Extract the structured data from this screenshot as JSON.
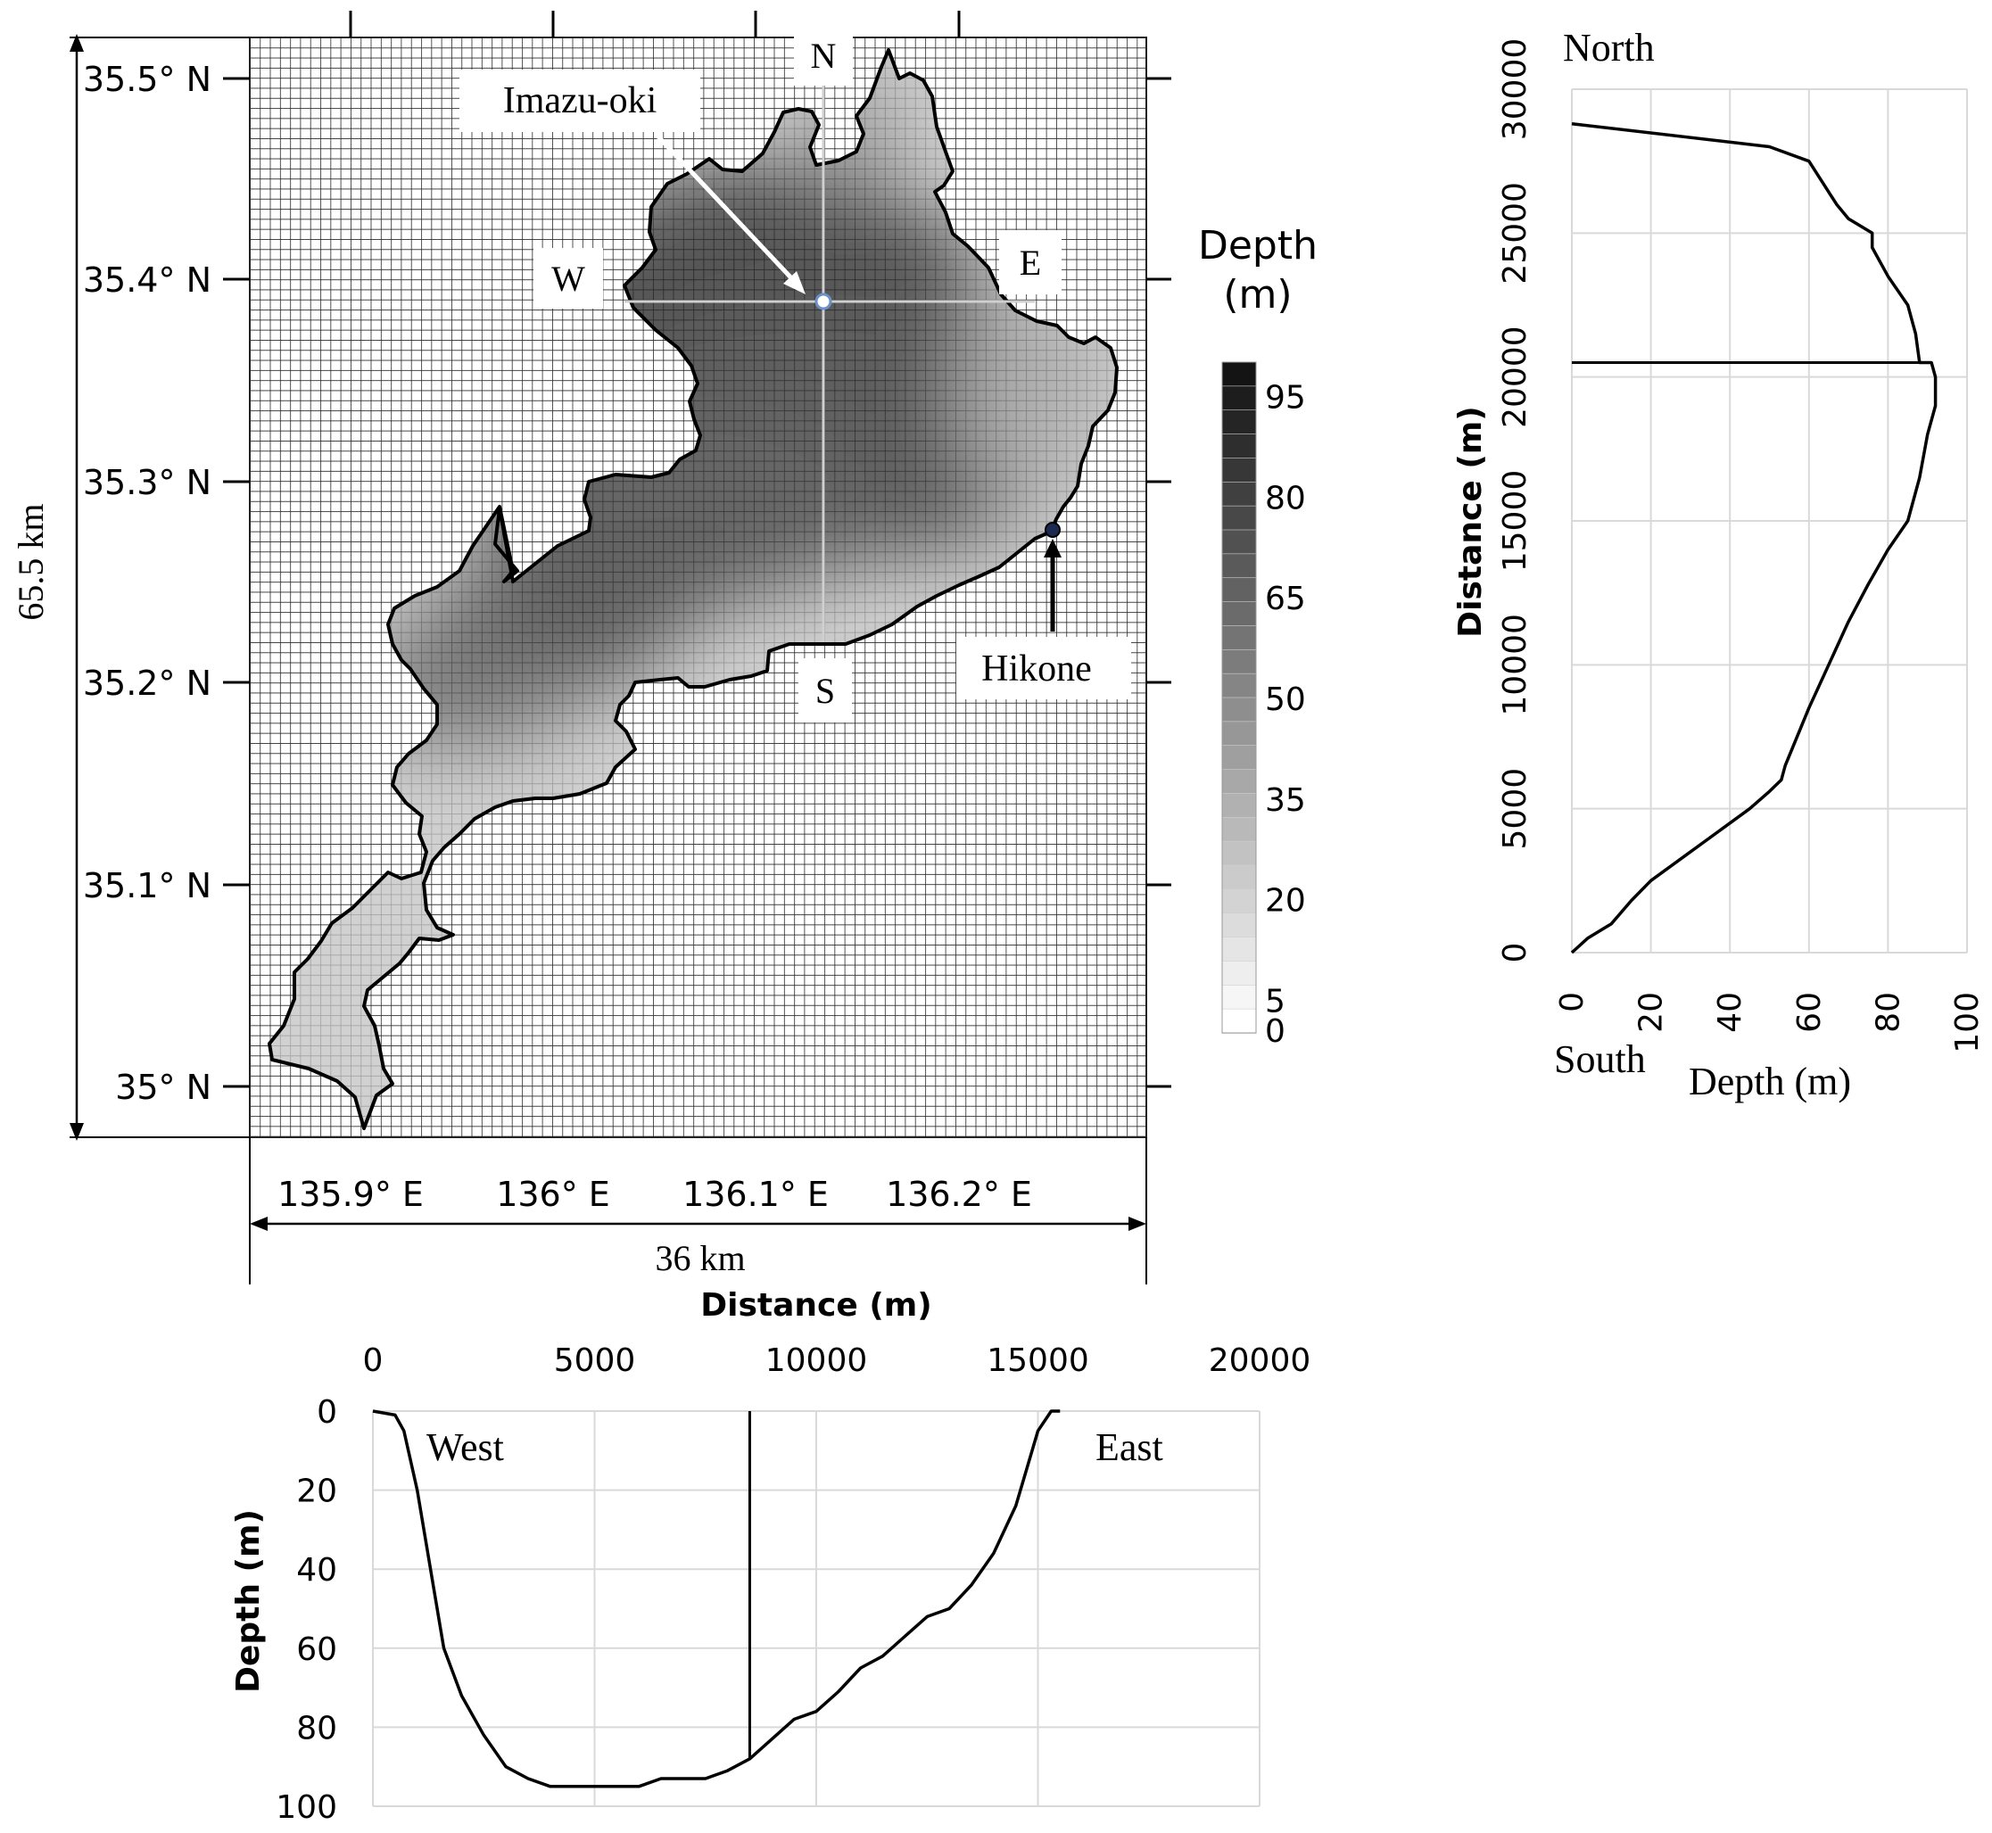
{
  "map": {
    "compass": {
      "n": "N",
      "s": "S",
      "w": "W",
      "e": "E"
    },
    "lat_labels": [
      "35° N",
      "35.1° N",
      "35.2° N",
      "35.3° N",
      "35.4° N",
      "35.5° N"
    ],
    "lon_labels": [
      "135.9° E",
      "136° E",
      "136.1° E",
      "136.2° E"
    ],
    "station_label": "Imazu-oki",
    "hikone_label": "Hikone",
    "height_label": "65.5 km",
    "width_label": "36 km",
    "colors": {
      "lake_shore": "#000000",
      "grid_line": "#222222",
      "transect": "#cfcfcf"
    }
  },
  "colorbar": {
    "title_line1": "Depth",
    "title_line2": "(m)",
    "ticks": [
      "95",
      "80",
      "65",
      "50",
      "35",
      "20",
      "5",
      "0"
    ],
    "range": [
      0,
      100
    ]
  },
  "chart_data": [
    {
      "type": "line",
      "orientation": "profile-vertical",
      "xlabel": "Depth (m)",
      "ylabel": "Distance (m)",
      "xlim": [
        0,
        100
      ],
      "ylim": [
        0,
        30000
      ],
      "xticks": [
        "0",
        "20",
        "40",
        "60",
        "80",
        "100"
      ],
      "yticks": [
        "0",
        "5000",
        "10000",
        "15000",
        "20000",
        "25000",
        "30000"
      ],
      "annotations": {
        "top": "North",
        "bottom": "South"
      },
      "grid": true,
      "marker_distance": 20500,
      "series": [
        {
          "x": [
            0,
            4,
            10,
            15,
            20,
            30,
            40,
            45,
            50,
            53,
            54,
            60,
            70,
            75,
            80,
            85,
            88,
            90,
            92,
            92,
            91,
            88,
            87,
            85,
            80,
            76,
            76,
            70,
            67,
            60,
            50,
            0
          ],
          "y": [
            0,
            500,
            1000,
            1800,
            2500,
            3500,
            4500,
            5000,
            5600,
            6000,
            6500,
            8500,
            11500,
            12800,
            14000,
            15000,
            16500,
            18000,
            19000,
            20000,
            20500,
            20500,
            21500,
            22500,
            23500,
            24500,
            25000,
            25500,
            26000,
            27500,
            28000,
            28800
          ]
        }
      ]
    },
    {
      "type": "line",
      "orientation": "profile-horizontal",
      "xlabel": "Distance  (m)",
      "ylabel": "Depth (m)",
      "xlim": [
        0,
        20000
      ],
      "ylim": [
        0,
        100
      ],
      "xticks": [
        "0",
        "5000",
        "10000",
        "15000",
        "20000"
      ],
      "yticks": [
        "0",
        "20",
        "40",
        "60",
        "80",
        "100"
      ],
      "annotations": {
        "left": "West",
        "right": "East"
      },
      "grid": true,
      "marker_distance": 8500,
      "series": [
        {
          "x": [
            0,
            500,
            700,
            1000,
            1300,
            1600,
            2000,
            2500,
            3000,
            3500,
            4000,
            5000,
            6000,
            6500,
            7000,
            7500,
            8000,
            8500,
            9000,
            9500,
            10000,
            10500,
            11000,
            11500,
            12000,
            12500,
            13000,
            13500,
            14000,
            14500,
            15000,
            15300,
            15500
          ],
          "y": [
            0,
            1,
            5,
            20,
            40,
            60,
            72,
            82,
            90,
            93,
            95,
            95,
            95,
            93,
            93,
            93,
            91,
            88,
            83,
            78,
            76,
            71,
            65,
            62,
            57,
            52,
            50,
            44,
            36,
            24,
            5,
            0,
            0
          ]
        }
      ]
    }
  ]
}
